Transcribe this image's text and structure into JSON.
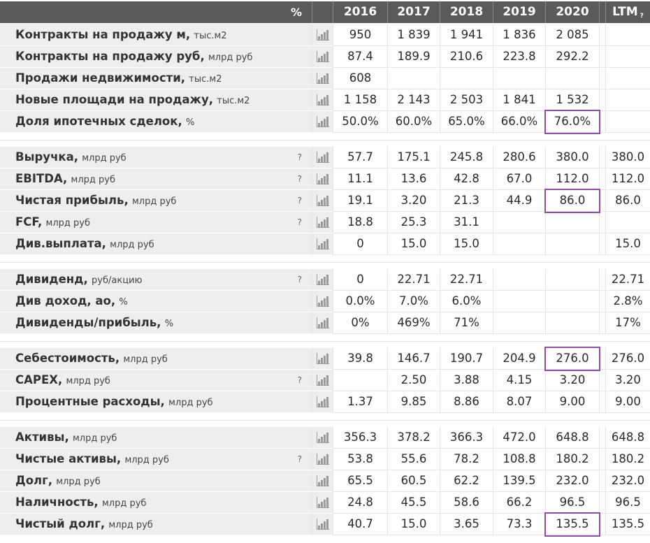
{
  "header": {
    "percent_label": "%",
    "years": [
      "2016",
      "2017",
      "2018",
      "2019",
      "2020"
    ],
    "ltm_label": "LTM",
    "ltm_help": "?"
  },
  "rows": [
    {
      "label": "Контракты на продажу м,",
      "unit": "тыс.м2",
      "help": "",
      "values": [
        "950",
        "1 839",
        "1 941",
        "1 836",
        "2 085"
      ],
      "ltm": ""
    },
    {
      "label": "Контракты на продажу руб,",
      "unit": "млрд руб",
      "help": "",
      "values": [
        "87.4",
        "189.9",
        "210.6",
        "223.8",
        "292.2"
      ],
      "ltm": ""
    },
    {
      "label": "Продажи недвижимости,",
      "unit": "тыс.м2",
      "help": "",
      "values": [
        "608",
        "",
        "",
        "",
        ""
      ],
      "ltm": ""
    },
    {
      "label": "Новые площади на продажу,",
      "unit": "тыс.м2",
      "help": "",
      "values": [
        "1 158",
        "2 143",
        "2 503",
        "1 841",
        "1 532"
      ],
      "ltm": ""
    },
    {
      "label": "Доля ипотечных сделок,",
      "unit": "%",
      "help": "",
      "values": [
        "50.0%",
        "60.0%",
        "65.0%",
        "66.0%",
        "76.0%"
      ],
      "ltm": ""
    },
    {
      "label": "Выручка,",
      "unit": "млрд руб",
      "help": "?",
      "values": [
        "57.7",
        "175.1",
        "245.8",
        "280.6",
        "380.0"
      ],
      "ltm": "380.0"
    },
    {
      "label": "EBITDA,",
      "unit": "млрд руб",
      "help": "?",
      "values": [
        "11.1",
        "13.6",
        "42.8",
        "67.0",
        "112.0"
      ],
      "ltm": "112.0"
    },
    {
      "label": "Чистая прибыль,",
      "unit": "млрд руб",
      "help": "?",
      "values": [
        "19.1",
        "3.20",
        "21.3",
        "44.9",
        "86.0"
      ],
      "ltm": "86.0"
    },
    {
      "label": "FCF,",
      "unit": "млрд руб",
      "help": "?",
      "values": [
        "18.8",
        "25.3",
        "31.1",
        "",
        ""
      ],
      "ltm": ""
    },
    {
      "label": "Див.выплата,",
      "unit": "млрд руб",
      "help": "",
      "values": [
        "0",
        "15.0",
        "15.0",
        "",
        ""
      ],
      "ltm": "15.0"
    },
    {
      "label": "Дивиденд,",
      "unit": "руб/акцию",
      "help": "?",
      "values": [
        "0",
        "22.71",
        "22.71",
        "",
        ""
      ],
      "ltm": "22.71"
    },
    {
      "label": "Див доход, ао,",
      "unit": "%",
      "help": "",
      "values": [
        "0.0%",
        "7.0%",
        "6.0%",
        "",
        ""
      ],
      "ltm": "2.8%"
    },
    {
      "label": "Дивиденды/прибыль,",
      "unit": "%",
      "help": "",
      "values": [
        "0%",
        "469%",
        "71%",
        "",
        ""
      ],
      "ltm": "17%"
    },
    {
      "label": "Себестоимость,",
      "unit": "млрд руб",
      "help": "",
      "values": [
        "39.8",
        "146.7",
        "190.7",
        "204.9",
        "276.0"
      ],
      "ltm": "276.0"
    },
    {
      "label": "CAPEX,",
      "unit": "млрд руб",
      "help": "?",
      "values": [
        "",
        "2.50",
        "3.88",
        "4.15",
        "3.20"
      ],
      "ltm": "3.20"
    },
    {
      "label": "Процентные расходы,",
      "unit": "млрд руб",
      "help": "",
      "values": [
        "1.37",
        "9.85",
        "8.86",
        "8.07",
        "9.00"
      ],
      "ltm": "9.00"
    },
    {
      "label": "Активы,",
      "unit": "млрд руб",
      "help": "",
      "values": [
        "356.3",
        "378.2",
        "366.3",
        "472.0",
        "648.8"
      ],
      "ltm": "648.8"
    },
    {
      "label": "Чистые активы,",
      "unit": "млрд руб",
      "help": "?",
      "values": [
        "53.8",
        "55.6",
        "78.2",
        "108.8",
        "180.2"
      ],
      "ltm": "180.2"
    },
    {
      "label": "Долг,",
      "unit": "млрд руб",
      "help": "",
      "values": [
        "65.5",
        "60.5",
        "62.2",
        "139.5",
        "232.0"
      ],
      "ltm": "232.0"
    },
    {
      "label": "Наличность,",
      "unit": "млрд руб",
      "help": "",
      "values": [
        "24.8",
        "45.5",
        "58.6",
        "66.2",
        "96.5"
      ],
      "ltm": "96.5"
    },
    {
      "label": "Чистый долг,",
      "unit": "млрд руб",
      "help": "",
      "values": [
        "40.7",
        "15.0",
        "3.65",
        "73.3",
        "135.5"
      ],
      "ltm": "135.5"
    }
  ],
  "highlight_color": "#8e4fa3",
  "chart_icon": "bar-chart-icon"
}
